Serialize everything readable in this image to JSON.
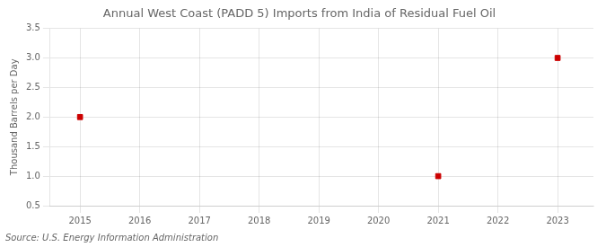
{
  "chart_data": {
    "type": "scatter",
    "title": "Annual West Coast (PADD 5) Imports from India of Residual Fuel Oil",
    "y_label": "Thousand Barrels per Day",
    "annotations": [
      "Source: U.S. Energy Information Administration"
    ],
    "x": [
      2015,
      2021,
      2023
    ],
    "values": [
      2.0,
      1.0,
      3.0
    ],
    "color": "#cc0000",
    "marker": "square",
    "xlim": [
      2014.5,
      2023.6
    ],
    "xticks": [
      2015,
      2016,
      2017,
      2018,
      2019,
      2020,
      2021,
      2022,
      2023
    ],
    "ylim": [
      0.5,
      3.5
    ],
    "yticks": [
      0.5,
      {
        "value": 1.0,
        "label": "1.0"
      },
      1.5,
      {
        "value": 2.0,
        "label": "2.0"
      },
      2.5,
      {
        "value": 3.0,
        "label": "3.0"
      },
      3.5
    ],
    "grid": true
  }
}
